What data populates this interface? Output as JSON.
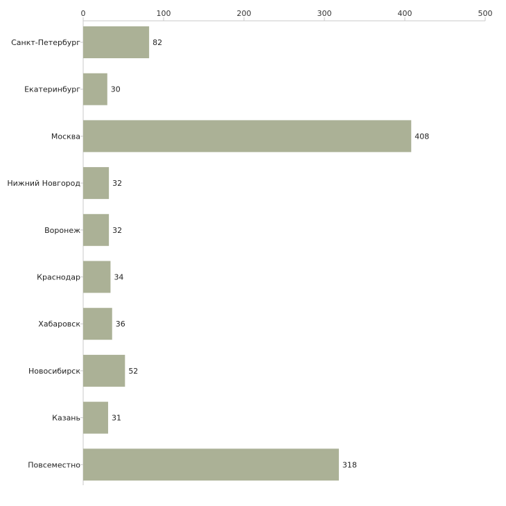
{
  "chart_data": {
    "type": "bar",
    "orientation": "horizontal",
    "title": "",
    "xlabel": "",
    "ylabel": "",
    "xlim": [
      0,
      500
    ],
    "ticks": [
      0,
      100,
      200,
      300,
      400,
      500
    ],
    "tick_labels": [
      "0",
      "100",
      "200",
      "300",
      "400",
      "500"
    ],
    "axis_position": "top",
    "grid": false,
    "categories": [
      "Санкт-Петербург",
      "Екатеринбург",
      "Москва",
      "Нижний Новгород",
      "Воронеж",
      "Краснодар",
      "Хабаровск",
      "Новосибирск",
      "Казань",
      "Повсеместно"
    ],
    "values": [
      82,
      30,
      408,
      32,
      32,
      34,
      36,
      52,
      31,
      318
    ],
    "value_labels": [
      "82",
      "30",
      "408",
      "32",
      "32",
      "34",
      "36",
      "52",
      "31",
      "318"
    ],
    "colors": {
      "bar": "#abb196",
      "axis": "#c8c8c8"
    }
  }
}
